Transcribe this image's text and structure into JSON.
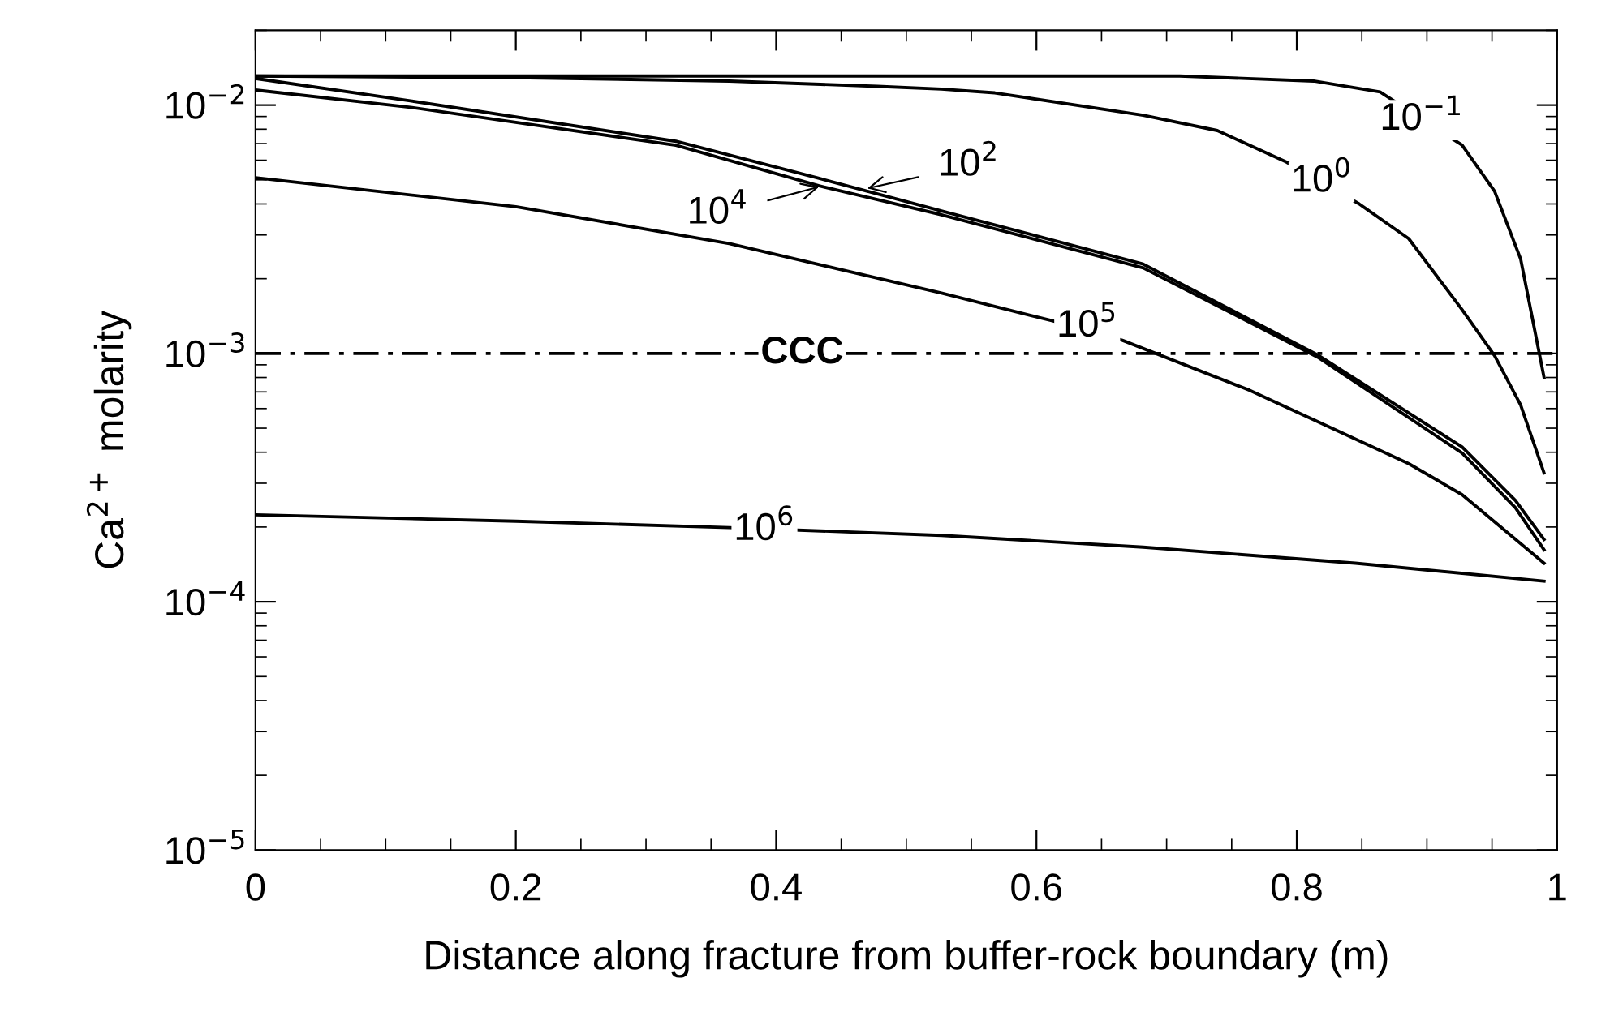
{
  "chart_data": {
    "type": "line",
    "xlabel": "Distance along fracture from buffer-rock boundary (m)",
    "ylabel": "Ca$^{2+}$ molarity",
    "log": "y",
    "xlim": [
      0,
      1
    ],
    "ylim": [
      1e-05,
      0.02
    ],
    "xticks": [
      {
        "value": 0,
        "label": "0"
      },
      0.2,
      0.4,
      0.6,
      0.8,
      {
        "value": 1,
        "label": "1"
      }
    ],
    "yticks": [
      {
        "value": 1e-05,
        "label": "10$^{−5}$"
      },
      {
        "value": 0.0001,
        "label": "10$^{−4}$"
      },
      {
        "value": 0.001,
        "label": "10$^{−3}$"
      },
      {
        "value": 0.01,
        "label": "10$^{−2}$"
      }
    ],
    "grid": false,
    "legend": false,
    "marker": "none",
    "line_style": "solid",
    "series": [
      {
        "color": "#000000",
        "x": [
          0,
          0.71,
          0.813,
          0.864,
          0.927,
          0.952,
          0.972,
          0.99
        ],
        "values": [
          0.0131,
          0.0131,
          0.0125,
          0.0113,
          0.0069,
          0.0045,
          0.0024,
          0.0008
        ]
      },
      {
        "color": "#000000",
        "x": [
          0,
          0.2,
          0.364,
          0.478,
          0.527,
          0.568,
          0.682,
          0.739,
          0.792,
          0.819,
          0.848,
          0.886,
          0.927,
          0.952,
          0.972,
          0.99
        ],
        "values": [
          0.0131,
          0.0129,
          0.0125,
          0.0119,
          0.0116,
          0.0112,
          0.0091,
          0.0079,
          0.0059,
          0.0049,
          0.004,
          0.0029,
          0.0015,
          0.00098,
          0.00062,
          0.00033
        ]
      },
      {
        "color": "#000000",
        "x": [
          0,
          0.119,
          0.323,
          0.433,
          0.527,
          0.682,
          0.817,
          0.927,
          0.968,
          0.99
        ],
        "values": [
          0.0128,
          0.0104,
          0.00715,
          0.00507,
          0.00375,
          0.00229,
          0.00098,
          0.00042,
          0.000256,
          0.000178
        ]
      },
      {
        "color": "#000000",
        "x": [
          0,
          0.119,
          0.323,
          0.433,
          0.527,
          0.682,
          0.817,
          0.927,
          0.968,
          0.99
        ],
        "values": [
          0.0115,
          0.0098,
          0.00689,
          0.00473,
          0.00362,
          0.00221,
          0.00096,
          0.000397,
          0.000239,
          0.000162
        ]
      },
      {
        "color": "#000000",
        "x": [
          0,
          0.2,
          0.364,
          0.527,
          0.613,
          0.666,
          0.764,
          0.886,
          0.927,
          0.99
        ],
        "values": [
          0.0051,
          0.0039,
          0.00277,
          0.00175,
          0.00135,
          0.00113,
          0.00071,
          0.00036,
          0.00027,
          0.000143
        ]
      },
      {
        "color": "#000000",
        "x": [
          0,
          0.2,
          0.364,
          0.527,
          0.682,
          0.845,
          0.99
        ],
        "values": [
          0.000224,
          0.000211,
          0.000199,
          0.000185,
          0.000166,
          0.000143,
          0.000121
        ]
      }
    ],
    "ref_lines": [
      {
        "axis": "y",
        "value": 0.001,
        "label": "CCC",
        "color": "#000000",
        "line_style": "dashdot"
      }
    ],
    "annotations": [
      {
        "text": "10$^{−1}$",
        "x": 0.896,
        "y": 0.0087
      },
      {
        "text": "10$^{0}$",
        "x": 0.819,
        "y": 0.0049
      },
      {
        "text": "10$^{2}$",
        "x": 0.47,
        "y": 0.00462
      },
      {
        "text": "10$^{4}$",
        "x": 0.433,
        "y": 0.00469
      },
      {
        "text": "10$^{5}$",
        "x": 0.639,
        "y": 0.00128
      },
      {
        "text": "10$^{6}$",
        "x": 0.391,
        "y": 0.000194
      }
    ]
  }
}
